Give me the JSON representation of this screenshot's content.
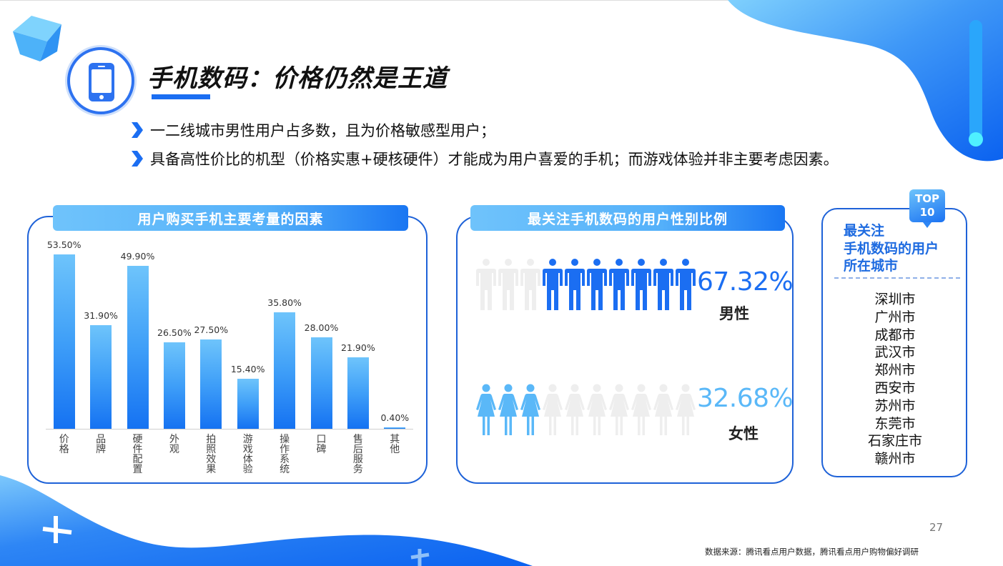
{
  "slide": {
    "title": "手机数码：价格仍然是王道",
    "bullets": [
      "一二线城市男性用户占多数，且为价格敏感型用户；",
      "具备高性价比的机型（价格实惠+硬核硬件）才能成为用户喜爱的手机；而游戏体验并非主要考虑因素。"
    ],
    "page_number": "27",
    "source": "数据来源：腾讯看点用户数据，腾讯看点用户购物偏好调研",
    "colors": {
      "primary": "#1b6ef2",
      "light": "#6ec4fb",
      "female": "#5ab8f8",
      "inactive": "#eeeeee"
    }
  },
  "bar_panel": {
    "title": "用户购买手机主要考量的因素",
    "labels": [
      "价\n格",
      "品\n牌",
      "硬\n件\n配\n置",
      "外\n观",
      "拍\n照\n效\n果",
      "游\n戏\n体\n验",
      "操\n作\n系\n统",
      "口\n碑",
      "售\n后\n服\n务",
      "其\n他"
    ],
    "value_labels": [
      "53.50%",
      "31.90%",
      "49.90%",
      "26.50%",
      "27.50%",
      "15.40%",
      "35.80%",
      "28.00%",
      "21.90%",
      "0.40%"
    ]
  },
  "gender_panel": {
    "title": "最关注手机数码的用户性别比例",
    "male": {
      "pct": "67.32%",
      "label": "男性",
      "icons_total": 10,
      "icons_active": 7
    },
    "female": {
      "pct": "32.68%",
      "label": "女性",
      "icons_total": 10,
      "icons_active": 3
    }
  },
  "city_panel": {
    "badge_line1": "TOP",
    "badge_line2": "10",
    "title_lines": [
      "最关注",
      "手机数码的用户",
      "所在城市"
    ],
    "cities": [
      "深圳市",
      "广州市",
      "成都市",
      "武汉市",
      "郑州市",
      "西安市",
      "苏州市",
      "东莞市",
      "石家庄市",
      "赣州市"
    ]
  },
  "chart_data": [
    {
      "type": "bar",
      "title": "用户购买手机主要考量的因素",
      "categories": [
        "价格",
        "品牌",
        "硬件配置",
        "外观",
        "拍照效果",
        "游戏体验",
        "操作系统",
        "口碑",
        "售后服务",
        "其他"
      ],
      "values": [
        53.5,
        31.9,
        49.9,
        26.5,
        27.5,
        15.4,
        35.8,
        28.0,
        21.9,
        0.4
      ],
      "value_labels": [
        "53.50%",
        "31.90%",
        "49.90%",
        "26.50%",
        "27.50%",
        "15.40%",
        "35.80%",
        "28.00%",
        "21.90%",
        "0.40%"
      ],
      "xlabel": "",
      "ylabel": "",
      "ylim": [
        0,
        55
      ],
      "grid": false,
      "legend": "none"
    },
    {
      "type": "pie",
      "title": "最关注手机数码的用户性别比例",
      "categories": [
        "男性",
        "女性"
      ],
      "values": [
        67.32,
        32.68
      ]
    },
    {
      "type": "table",
      "title": "TOP 10 最关注手机数码的用户所在城市",
      "columns": [
        "城市"
      ],
      "rows": [
        [
          "深圳市"
        ],
        [
          "广州市"
        ],
        [
          "成都市"
        ],
        [
          "武汉市"
        ],
        [
          "郑州市"
        ],
        [
          "西安市"
        ],
        [
          "苏州市"
        ],
        [
          "东莞市"
        ],
        [
          "石家庄市"
        ],
        [
          "赣州市"
        ]
      ]
    }
  ]
}
